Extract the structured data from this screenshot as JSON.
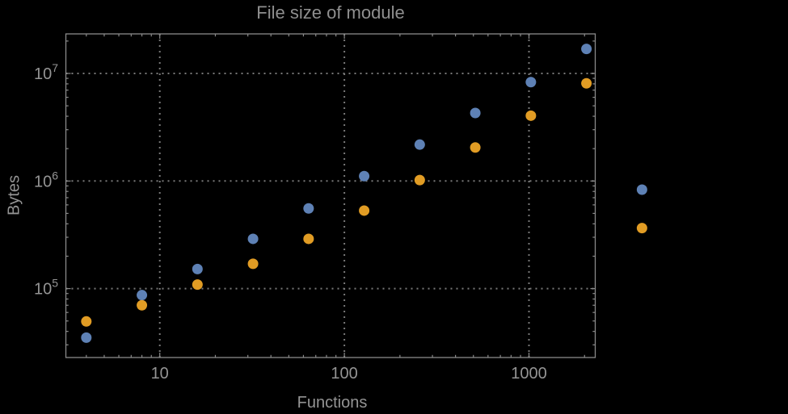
{
  "chart_data": {
    "type": "scatter",
    "title": "File size of module",
    "xlabel": "Functions",
    "ylabel": "Bytes",
    "x_scale": "log",
    "y_scale": "log",
    "xlim": [
      3.1,
      2300
    ],
    "ylim": [
      23000,
      23500000
    ],
    "grid": "dotted-at-decades",
    "legend": "none",
    "clip_points_to_frame": false,
    "x": [
      4,
      8,
      16,
      32,
      64,
      128,
      256,
      512,
      1024,
      2048,
      4096
    ],
    "series": [
      {
        "name": "series-blue",
        "color": "#5E81B5",
        "values": [
          35000,
          87000,
          152000,
          290000,
          556000,
          1110000,
          2180000,
          4290000,
          8310000,
          16900000,
          831000
        ]
      },
      {
        "name": "series-orange",
        "color": "#E19C24",
        "values": [
          49500,
          70000,
          109000,
          170000,
          290000,
          531000,
          1020000,
          2050000,
          4050000,
          8090000,
          365000
        ]
      }
    ],
    "x_ticks": [
      {
        "label": "10",
        "value": 10
      },
      {
        "label": "100",
        "value": 100
      },
      {
        "label": "1000",
        "value": 1000
      }
    ],
    "y_ticks": [
      {
        "base": "10",
        "exp": "5",
        "value": 100000
      },
      {
        "base": "10",
        "exp": "6",
        "value": 1000000
      },
      {
        "base": "10",
        "exp": "7",
        "value": 10000000
      }
    ]
  },
  "colors": {
    "background": "#000000",
    "frame": "#8a8a8a",
    "grid": "#787878",
    "tick_text": "#949494",
    "title_text": "#8f8f8f",
    "point_blue": "#5E81B5",
    "point_orange": "#E19C24"
  }
}
